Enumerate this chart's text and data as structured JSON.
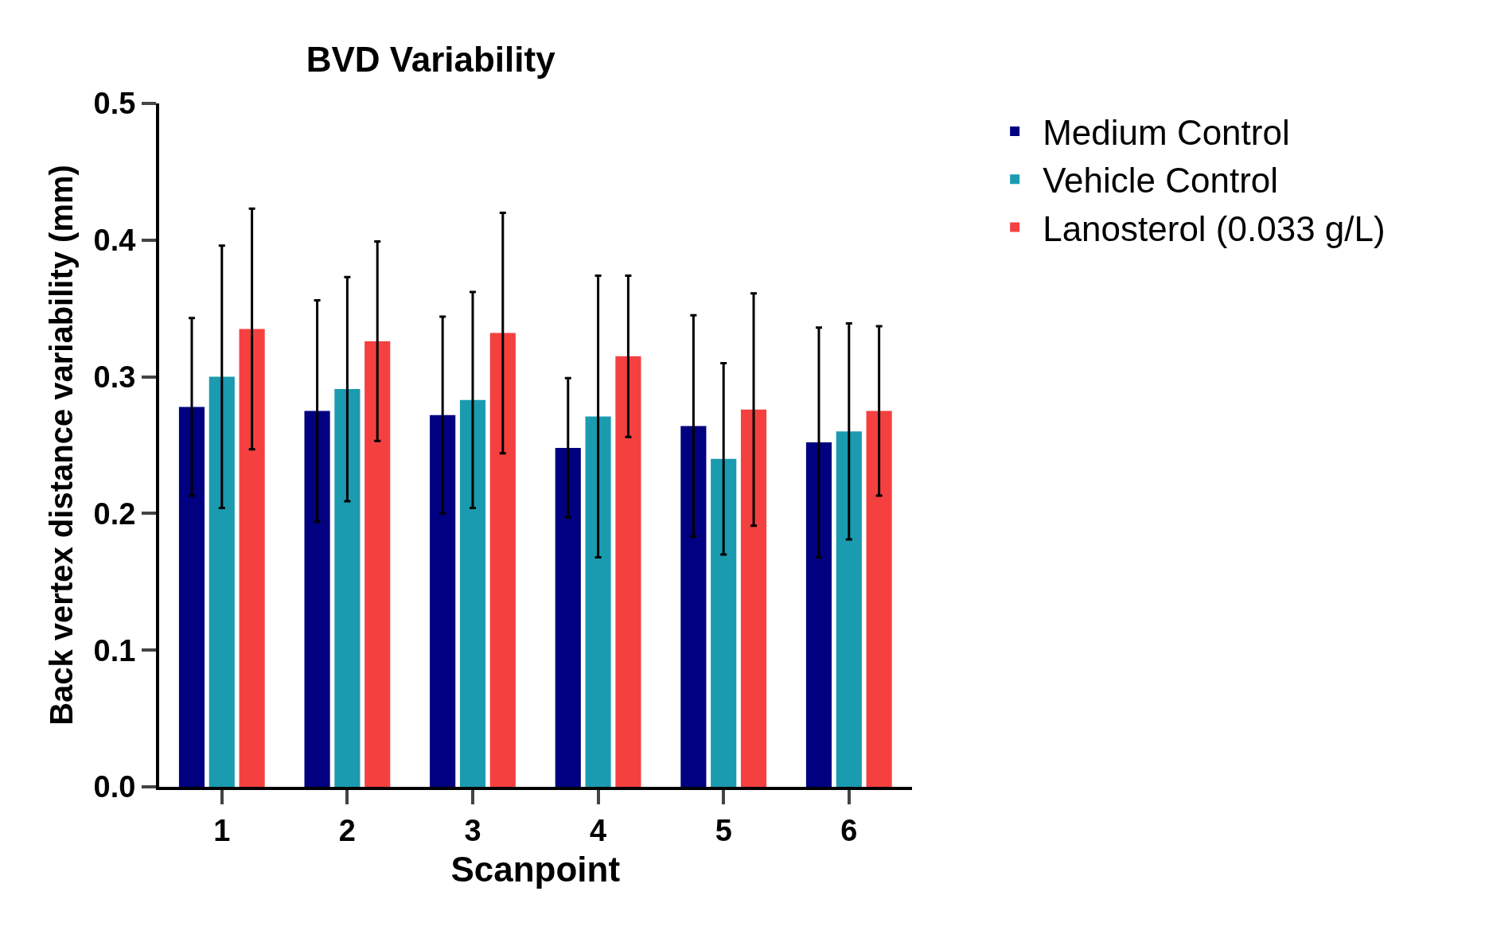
{
  "chart_data": {
    "type": "bar",
    "title": "BVD Variability",
    "xlabel": "Scanpoint",
    "ylabel": "Back vertex distance variability (mm)",
    "categories": [
      "1",
      "2",
      "3",
      "4",
      "5",
      "6"
    ],
    "series": [
      {
        "name": "Medium Control",
        "color": "#000080",
        "values": [
          0.278,
          0.275,
          0.272,
          0.248,
          0.264,
          0.252
        ],
        "errors": [
          0.065,
          0.081,
          0.072,
          0.051,
          0.081,
          0.084
        ]
      },
      {
        "name": "Vehicle Control",
        "color": "#1a9bb0",
        "values": [
          0.3,
          0.291,
          0.283,
          0.271,
          0.24,
          0.26
        ],
        "errors": [
          0.096,
          0.082,
          0.079,
          0.103,
          0.07,
          0.079
        ]
      },
      {
        "name": "Lanosterol (0.033 g/L)",
        "color": "#f54040",
        "values": [
          0.335,
          0.326,
          0.332,
          0.315,
          0.276,
          0.275
        ],
        "errors": [
          0.088,
          0.073,
          0.088,
          0.059,
          0.085,
          0.062
        ]
      }
    ],
    "ylim": [
      0,
      0.5
    ],
    "yticks": [
      {
        "value": 0,
        "label": "0.0"
      },
      0.1,
      0.2,
      0.3,
      0.4,
      0.5
    ],
    "legend": "top right"
  }
}
